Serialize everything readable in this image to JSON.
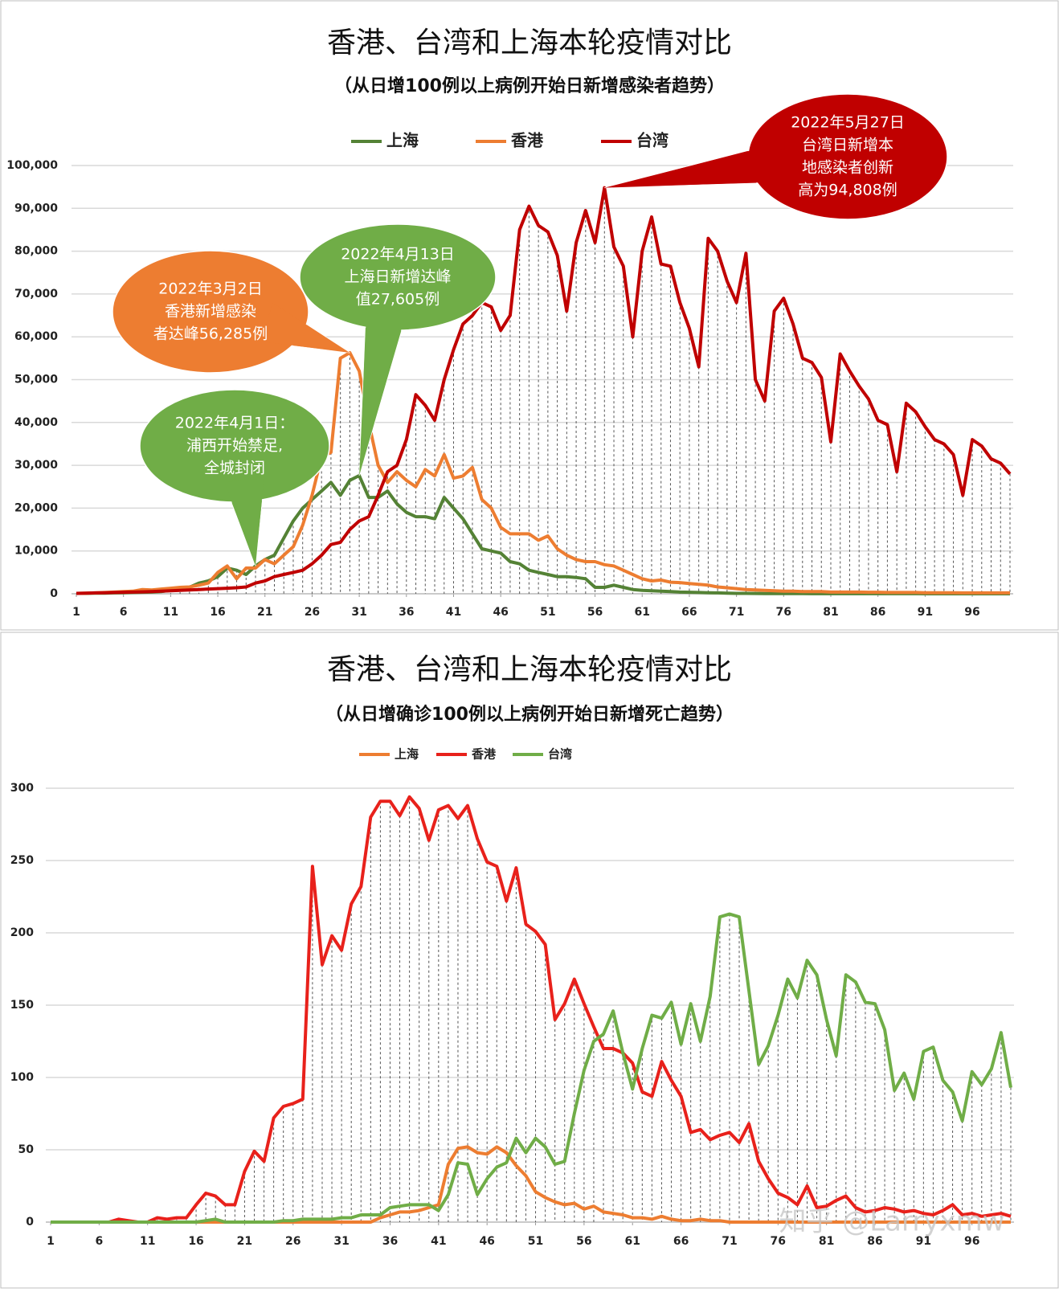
{
  "chart_data": [
    {
      "type": "line",
      "title": "香港、台湾和上海本轮疫情对比",
      "subtitle": "（从日增100例以上病例开始日新增感染者趋势）",
      "x": [
        1,
        2,
        3,
        4,
        5,
        6,
        7,
        8,
        9,
        10,
        11,
        12,
        13,
        14,
        15,
        16,
        17,
        18,
        19,
        20,
        21,
        22,
        23,
        24,
        25,
        26,
        27,
        28,
        29,
        30,
        31,
        32,
        33,
        34,
        35,
        36,
        37,
        38,
        39,
        40,
        41,
        42,
        43,
        44,
        45,
        46,
        47,
        48,
        49,
        50,
        51,
        52,
        53,
        54,
        55,
        56,
        57,
        58,
        59,
        60,
        61,
        62,
        63,
        64,
        65,
        66,
        67,
        68,
        69,
        70,
        71,
        72,
        73,
        74,
        75,
        76,
        77,
        78,
        79,
        80,
        81,
        82,
        83,
        84,
        85,
        86,
        87,
        88,
        89,
        90,
        91,
        92,
        93,
        94,
        95,
        96,
        97,
        98,
        99,
        100
      ],
      "xlim": [
        1,
        100
      ],
      "xticks": [
        1,
        6,
        11,
        16,
        21,
        26,
        31,
        36,
        41,
        46,
        51,
        56,
        61,
        66,
        71,
        76,
        81,
        86,
        91,
        96
      ],
      "ylim": [
        0,
        100000
      ],
      "yticks": [
        0,
        {
          "value": 10000,
          "label": "10,000"
        },
        {
          "value": 20000,
          "label": "20,000"
        },
        {
          "value": 30000,
          "label": "30,000"
        },
        {
          "value": 40000,
          "label": "40,000"
        },
        {
          "value": 50000,
          "label": "50,000"
        },
        {
          "value": 60000,
          "label": "60,000"
        },
        {
          "value": 70000,
          "label": "70,000"
        },
        {
          "value": 80000,
          "label": "80,000"
        },
        {
          "value": 90000,
          "label": "90,000"
        },
        {
          "value": 100000,
          "label": "100,000"
        }
      ],
      "grid": true,
      "legend": "top",
      "series": [
        {
          "name": "上海",
          "color": "#548235",
          "values": [
            100,
            100,
            150,
            150,
            200,
            250,
            300,
            350,
            400,
            500,
            800,
            1000,
            1500,
            2500,
            3000,
            4000,
            6000,
            5500,
            4500,
            6500,
            8000,
            9000,
            13000,
            17000,
            20000,
            22000,
            24000,
            26000,
            23000,
            26500,
            27605,
            22500,
            22500,
            24000,
            21000,
            19000,
            18000,
            18000,
            17500,
            22500,
            20000,
            17500,
            14000,
            10500,
            10000,
            9500,
            7500,
            7000,
            5500,
            5000,
            4500,
            4000,
            4000,
            3800,
            3500,
            1500,
            1500,
            2000,
            1500,
            1000,
            800,
            700,
            600,
            500,
            400,
            350,
            300,
            250,
            200,
            150,
            100,
            100,
            80,
            60,
            50,
            40,
            30,
            30,
            20,
            20,
            10,
            10,
            10,
            10,
            10,
            10,
            10,
            10,
            10,
            10,
            5,
            5,
            5,
            5,
            5,
            5,
            5,
            5,
            5,
            5
          ]
        },
        {
          "name": "香港",
          "color": "#ed7d31",
          "values": [
            100,
            150,
            200,
            300,
            400,
            500,
            600,
            1000,
            900,
            1100,
            1300,
            1500,
            1600,
            2000,
            2500,
            5000,
            6500,
            3500,
            6000,
            6000,
            8000,
            7000,
            9000,
            11000,
            16000,
            23000,
            32000,
            33000,
            55000,
            56285,
            52000,
            40000,
            30000,
            26000,
            28500,
            26500,
            25000,
            29000,
            27500,
            32500,
            27000,
            27500,
            29500,
            22000,
            20000,
            15500,
            14000,
            14000,
            14000,
            12500,
            13500,
            10500,
            9000,
            8000,
            7500,
            7500,
            6800,
            6500,
            5500,
            4500,
            3500,
            3000,
            3200,
            2700,
            2600,
            2400,
            2200,
            2000,
            1600,
            1400,
            1200,
            1000,
            900,
            800,
            700,
            600,
            600,
            500,
            500,
            500,
            400,
            400,
            400,
            400,
            350,
            350,
            300,
            300,
            300,
            300,
            250,
            250,
            250,
            250,
            200,
            200,
            200,
            200,
            200,
            200
          ]
        },
        {
          "name": "台湾",
          "color": "#c00000",
          "values": [
            100,
            150,
            200,
            250,
            300,
            350,
            400,
            450,
            500,
            600,
            700,
            800,
            900,
            1000,
            1100,
            1200,
            1300,
            1400,
            1600,
            2500,
            3000,
            4000,
            4500,
            5000,
            5500,
            7000,
            9000,
            11500,
            12000,
            15000,
            17000,
            18000,
            23000,
            28500,
            30000,
            36000,
            46500,
            44000,
            40500,
            50000,
            57000,
            63000,
            65000,
            68000,
            67000,
            61500,
            65000,
            85000,
            90500,
            86000,
            84500,
            79000,
            66000,
            82000,
            89500,
            82000,
            94808,
            81000,
            76500,
            60000,
            80000,
            88000,
            77000,
            76500,
            68000,
            62000,
            53000,
            83000,
            80000,
            73000,
            68000,
            79500,
            50000,
            45000,
            66000,
            69000,
            63000,
            55000,
            54000,
            50500,
            35500,
            56000,
            52000,
            48500,
            45500,
            40500,
            39500,
            28500,
            44500,
            42500,
            39000,
            36000,
            35000,
            32500,
            23000,
            36000,
            34500,
            31500,
            30500,
            28000
          ]
        }
      ],
      "annotations": [
        {
          "lines": [
            "2022年3月2日",
            "香港新增感染",
            "者达峰56,285例"
          ]
        },
        {
          "lines": [
            "2022年4月13日",
            "上海日新增达峰",
            "值27,605例"
          ]
        },
        {
          "lines": [
            "2022年4月1日：",
            "浦西开始禁足,",
            "全城封闭"
          ]
        },
        {
          "lines": [
            "2022年5月27日",
            "台湾日新增本",
            "地感染者创新",
            "高为94,808例"
          ]
        }
      ]
    },
    {
      "type": "line",
      "title": "香港、台湾和上海本轮疫情对比",
      "subtitle": "（从日增确诊100例以上病例开始日新增死亡趋势）",
      "x": [
        1,
        2,
        3,
        4,
        5,
        6,
        7,
        8,
        9,
        10,
        11,
        12,
        13,
        14,
        15,
        16,
        17,
        18,
        19,
        20,
        21,
        22,
        23,
        24,
        25,
        26,
        27,
        28,
        29,
        30,
        31,
        32,
        33,
        34,
        35,
        36,
        37,
        38,
        39,
        40,
        41,
        42,
        43,
        44,
        45,
        46,
        47,
        48,
        49,
        50,
        51,
        52,
        53,
        54,
        55,
        56,
        57,
        58,
        59,
        60,
        61,
        62,
        63,
        64,
        65,
        66,
        67,
        68,
        69,
        70,
        71,
        72,
        73,
        74,
        75,
        76,
        77,
        78,
        79,
        80,
        81,
        82,
        83,
        84,
        85,
        86,
        87,
        88,
        89,
        90,
        91,
        92,
        93,
        94,
        95,
        96,
        97,
        98,
        99,
        100
      ],
      "xlim": [
        1,
        100
      ],
      "xticks": [
        1,
        6,
        11,
        16,
        21,
        26,
        31,
        36,
        41,
        46,
        51,
        56,
        61,
        66,
        71,
        76,
        81,
        86,
        91,
        96
      ],
      "ylim": [
        0,
        300
      ],
      "yticks": [
        0,
        50,
        100,
        150,
        200,
        250,
        300
      ],
      "grid": true,
      "legend": "top",
      "series": [
        {
          "name": "上海",
          "color": "#ed7d31",
          "values": [
            0,
            0,
            0,
            0,
            0,
            0,
            0,
            0,
            0,
            0,
            0,
            0,
            0,
            0,
            0,
            0,
            0,
            0,
            0,
            0,
            0,
            0,
            0,
            0,
            0,
            0,
            0,
            0,
            0,
            0,
            0,
            0,
            0,
            0,
            3,
            5,
            7,
            7,
            8,
            10,
            12,
            40,
            51,
            52,
            48,
            47,
            52,
            48,
            39,
            32,
            21,
            17,
            14,
            12,
            13,
            9,
            11,
            7,
            6,
            5,
            3,
            3,
            2,
            4,
            2,
            1,
            1,
            2,
            1,
            1,
            0,
            0,
            0,
            0,
            0,
            0,
            0,
            0,
            0,
            0,
            0,
            0,
            0,
            0,
            0,
            0,
            0,
            0,
            0,
            0,
            0,
            0,
            0,
            0,
            0,
            0,
            0,
            0,
            0,
            0
          ]
        },
        {
          "name": "香港",
          "color": "#e8211b",
          "values": [
            0,
            0,
            0,
            0,
            0,
            0,
            0,
            2,
            1,
            0,
            0,
            3,
            2,
            3,
            3,
            12,
            20,
            18,
            12,
            12,
            35,
            49,
            42,
            72,
            80,
            82,
            85,
            246,
            178,
            198,
            188,
            220,
            232,
            280,
            291,
            291,
            281,
            294,
            286,
            264,
            285,
            288,
            279,
            288,
            265,
            249,
            246,
            222,
            245,
            206,
            201,
            192,
            140,
            151,
            168,
            151,
            135,
            120,
            120,
            117,
            110,
            90,
            87,
            111,
            98,
            87,
            62,
            64,
            57,
            60,
            62,
            55,
            68,
            42,
            30,
            20,
            17,
            12,
            25,
            10,
            11,
            15,
            18,
            10,
            7,
            8,
            10,
            9,
            7,
            8,
            6,
            5,
            8,
            12,
            5,
            6,
            4,
            5,
            6,
            4
          ]
        },
        {
          "name": "台湾",
          "color": "#70ad47",
          "values": [
            0,
            0,
            0,
            0,
            0,
            0,
            0,
            0,
            0,
            0,
            0,
            0,
            0,
            0,
            0,
            0,
            1,
            2,
            0,
            0,
            0,
            0,
            0,
            0,
            1,
            1,
            2,
            2,
            2,
            2,
            3,
            3,
            5,
            5,
            5,
            10,
            11,
            12,
            12,
            12,
            8,
            19,
            41,
            40,
            19,
            30,
            38,
            41,
            58,
            48,
            58,
            52,
            40,
            42,
            75,
            105,
            125,
            130,
            146,
            117,
            92,
            120,
            143,
            141,
            152,
            123,
            151,
            125,
            156,
            211,
            213,
            211,
            160,
            109,
            122,
            143,
            168,
            155,
            181,
            171,
            140,
            115,
            171,
            166,
            152,
            151,
            133,
            91,
            103,
            85,
            118,
            121,
            98,
            90,
            70,
            104,
            95,
            106,
            131,
            93
          ]
        }
      ]
    }
  ],
  "watermark": "知乎 @Larryxmw"
}
